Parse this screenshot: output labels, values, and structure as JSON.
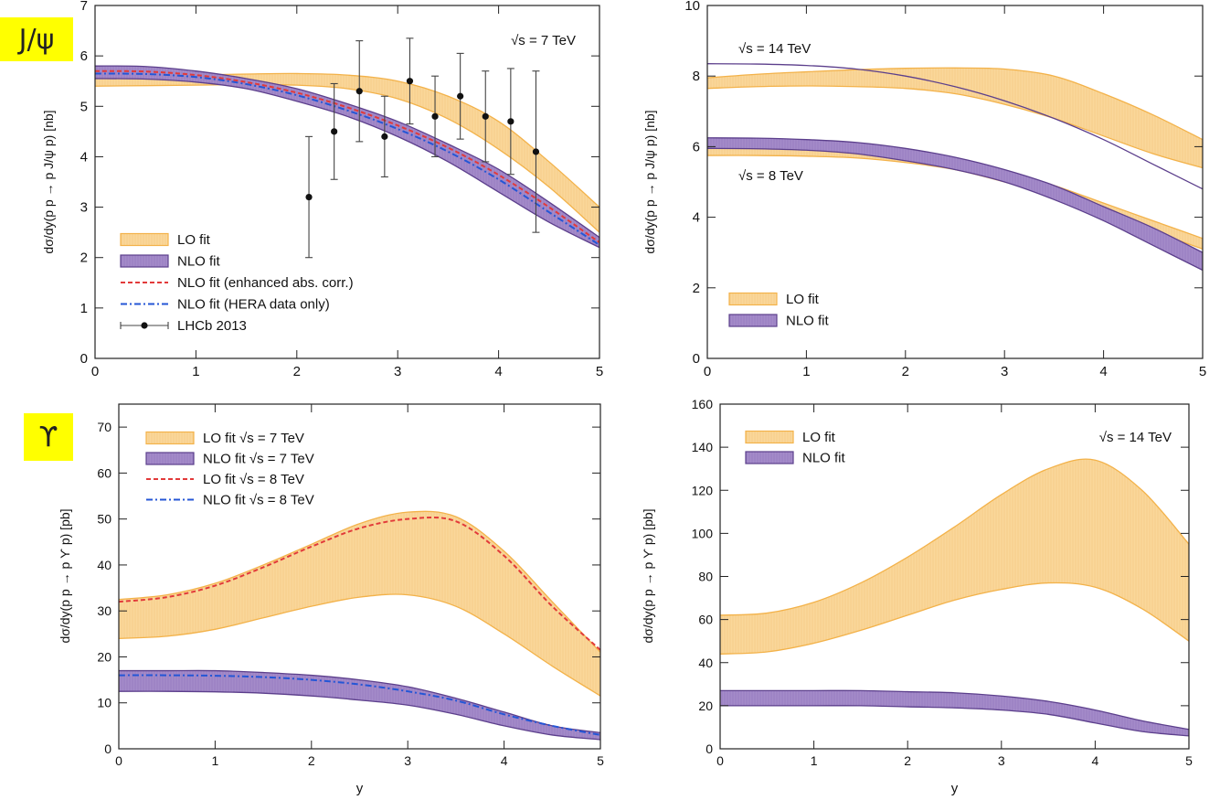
{
  "tags": {
    "jpsi": "J/ψ",
    "upsilon": "ϒ"
  },
  "colors": {
    "lo_fill": "#fad79a",
    "lo_edge": "#f3b24a",
    "nlo_fill": "#a48bc9",
    "nlo_edge": "#5c3f8c",
    "nlo_enhanced": "#e23a3a",
    "nlo_hera": "#2456d6",
    "lo8": "#e23a3a",
    "nlo8": "#2456d6"
  },
  "chart_data": [
    {
      "id": "jpsi_7tev",
      "type": "line",
      "xlim": [
        0,
        5
      ],
      "ylim": [
        0,
        7
      ],
      "xticks": [
        0,
        1,
        2,
        3,
        4,
        5
      ],
      "yticks": [
        0,
        1,
        2,
        3,
        4,
        5,
        6,
        7
      ],
      "xlabel": "",
      "ylabel": "dσ/dy(p p → p J/ψ p) [nb]",
      "annotations": [
        {
          "text": "√s = 7 TeV"
        }
      ],
      "legend_position": "bottom-left",
      "x": [
        0,
        0.5,
        1,
        1.5,
        2,
        2.5,
        3,
        3.5,
        4,
        4.5,
        5
      ],
      "bands": [
        {
          "name": "LO fit",
          "style": "lo",
          "upper": [
            5.6,
            5.61,
            5.62,
            5.64,
            5.65,
            5.62,
            5.5,
            5.2,
            4.7,
            3.9,
            3.0
          ],
          "lower": [
            5.4,
            5.41,
            5.42,
            5.43,
            5.42,
            5.35,
            5.15,
            4.75,
            4.15,
            3.4,
            2.5
          ]
        },
        {
          "name": "NLO fit",
          "style": "nlo",
          "upper": [
            5.8,
            5.79,
            5.7,
            5.55,
            5.35,
            5.05,
            4.7,
            4.25,
            3.75,
            3.1,
            2.4
          ],
          "lower": [
            5.55,
            5.54,
            5.48,
            5.35,
            5.1,
            4.8,
            4.4,
            3.9,
            3.3,
            2.7,
            2.2
          ]
        }
      ],
      "lines": [
        {
          "name": "NLO fit (enhanced abs. corr.)",
          "style": "nlo_enhanced",
          "dash": "dashed",
          "values": [
            5.7,
            5.69,
            5.62,
            5.48,
            5.27,
            4.98,
            4.62,
            4.18,
            3.64,
            3.0,
            2.3
          ]
        },
        {
          "name": "NLO fit (HERA data only)",
          "style": "nlo_hera",
          "dash": "dashdot",
          "values": [
            5.65,
            5.64,
            5.58,
            5.44,
            5.22,
            4.92,
            4.55,
            4.1,
            3.55,
            2.9,
            2.25
          ]
        }
      ],
      "points": {
        "name": "LHCb 2013",
        "x": [
          2.12,
          2.37,
          2.62,
          2.87,
          3.12,
          3.37,
          3.62,
          3.87,
          4.12,
          4.37
        ],
        "y": [
          3.2,
          4.5,
          5.3,
          4.4,
          5.5,
          4.8,
          5.2,
          4.8,
          4.7,
          4.1
        ],
        "err": [
          1.2,
          0.95,
          1.0,
          0.8,
          0.85,
          0.8,
          0.85,
          0.9,
          1.05,
          1.6
        ]
      }
    },
    {
      "id": "jpsi_8_14tev",
      "type": "line",
      "xlim": [
        0,
        5
      ],
      "ylim": [
        0,
        10
      ],
      "xticks": [
        0,
        1,
        2,
        3,
        4,
        5
      ],
      "yticks": [
        0,
        2,
        4,
        6,
        8,
        10
      ],
      "xlabel": "",
      "ylabel": "dσ/dy(p p → p J/ψ p) [nb]",
      "annotations": [
        {
          "text": "√s = 14 TeV"
        },
        {
          "text": "√s = 8 TeV"
        }
      ],
      "legend_position": "bottom-left",
      "x": [
        0,
        0.5,
        1,
        1.5,
        2,
        2.5,
        3,
        3.5,
        4,
        4.5,
        5
      ],
      "bands": [
        {
          "name": "LO fit",
          "style": "lo",
          "upper": [
            7.95,
            8.05,
            8.12,
            8.18,
            8.22,
            8.23,
            8.2,
            8.0,
            7.5,
            6.9,
            6.2
          ],
          "lower": [
            7.65,
            7.7,
            7.72,
            7.7,
            7.65,
            7.5,
            7.2,
            6.8,
            6.3,
            5.8,
            5.4
          ]
        },
        {
          "name": "NLO fit",
          "style": "nlo",
          "upper": [
            8.35,
            8.34,
            8.3,
            8.2,
            8.0,
            7.7,
            7.3,
            6.8,
            6.2,
            5.5,
            4.8
          ]
        },
        {
          "name": "LO fit",
          "style": "lo",
          "legend": false,
          "upper": [
            5.95,
            5.95,
            5.94,
            5.9,
            5.8,
            5.6,
            5.3,
            4.9,
            4.4,
            3.9,
            3.4
          ],
          "lower": [
            5.75,
            5.75,
            5.73,
            5.68,
            5.55,
            5.35,
            5.0,
            4.6,
            4.1,
            3.6,
            3.1
          ]
        },
        {
          "name": "NLO fit",
          "style": "nlo",
          "legend": false,
          "upper": [
            6.25,
            6.24,
            6.2,
            6.12,
            5.95,
            5.7,
            5.35,
            4.9,
            4.3,
            3.7,
            3.0
          ],
          "lower": [
            5.95,
            5.94,
            5.9,
            5.8,
            5.6,
            5.35,
            5.0,
            4.5,
            3.9,
            3.2,
            2.5
          ]
        }
      ]
    },
    {
      "id": "upsilon_7_8tev",
      "type": "line",
      "xlim": [
        0,
        5
      ],
      "ylim": [
        0,
        75
      ],
      "xticks": [
        0,
        1,
        2,
        3,
        4,
        5
      ],
      "yticks": [
        0,
        10,
        20,
        30,
        40,
        50,
        60,
        70
      ],
      "xlabel": "y",
      "ylabel": "dσ/dy(p p → p ϒ p) [pb]",
      "legend_position": "top-left",
      "x": [
        0,
        0.5,
        1,
        1.5,
        2,
        2.5,
        3,
        3.5,
        4,
        4.5,
        5
      ],
      "bands": [
        {
          "name": "LO fit √s = 7 TeV",
          "style": "lo",
          "upper": [
            32.5,
            33.5,
            36.0,
            40.0,
            44.5,
            49.0,
            51.5,
            50.5,
            43.0,
            32.0,
            21.0
          ],
          "lower": [
            24.0,
            24.5,
            26.0,
            28.5,
            31.0,
            33.0,
            33.5,
            31.0,
            25.0,
            18.0,
            11.5
          ]
        },
        {
          "name": "NLO fit √s = 7 TeV",
          "style": "nlo",
          "upper": [
            17.0,
            17.0,
            17.0,
            16.6,
            16.0,
            15.0,
            13.5,
            11.0,
            8.0,
            5.0,
            3.5
          ],
          "lower": [
            12.5,
            12.5,
            12.4,
            12.1,
            11.5,
            10.6,
            9.5,
            7.5,
            5.0,
            3.0,
            2.0
          ]
        }
      ],
      "lines": [
        {
          "name": "LO fit √s = 8 TeV",
          "style": "lo8",
          "dash": "dashed",
          "values": [
            32.0,
            33.0,
            35.5,
            39.5,
            44.0,
            48.0,
            50.0,
            49.5,
            42.0,
            31.0,
            21.5
          ]
        },
        {
          "name": "NLO fit √s = 8 TeV",
          "style": "nlo8",
          "dash": "dashdot",
          "values": [
            16.0,
            16.0,
            15.9,
            15.6,
            15.0,
            14.0,
            12.5,
            10.5,
            7.5,
            5.0,
            3.0
          ]
        }
      ]
    },
    {
      "id": "upsilon_14tev",
      "type": "line",
      "xlim": [
        0,
        5
      ],
      "ylim": [
        0,
        160
      ],
      "xticks": [
        0,
        1,
        2,
        3,
        4,
        5
      ],
      "yticks": [
        0,
        20,
        40,
        60,
        80,
        100,
        120,
        140,
        160
      ],
      "xlabel": "y",
      "ylabel": "dσ/dy(p p → p ϒ p) [pb]",
      "annotations": [
        {
          "text": "√s = 14 TeV"
        }
      ],
      "legend_position": "top-left",
      "x": [
        0,
        0.5,
        1,
        1.5,
        2,
        2.5,
        3,
        3.5,
        4,
        4.5,
        5
      ],
      "bands": [
        {
          "name": "LO fit",
          "style": "lo",
          "upper": [
            62,
            63,
            68,
            77,
            89,
            103,
            118,
            130,
            134,
            120,
            95
          ],
          "lower": [
            44,
            45,
            49,
            55,
            62,
            69,
            74,
            77,
            75,
            65,
            50
          ]
        },
        {
          "name": "NLO fit",
          "style": "nlo",
          "upper": [
            27,
            27,
            27,
            27,
            26.5,
            26,
            24.5,
            22,
            18,
            13,
            9
          ],
          "lower": [
            20,
            20,
            20,
            20,
            19.5,
            19,
            18,
            16,
            12,
            8,
            6
          ]
        }
      ]
    }
  ]
}
